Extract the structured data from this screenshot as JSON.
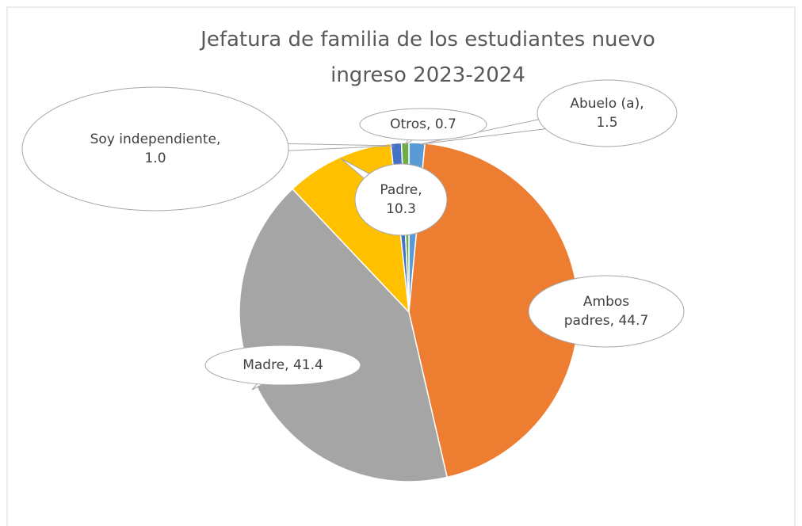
{
  "chart_data": {
    "type": "pie",
    "title": "Jefatura de familia de los estudiantes nuevo ingreso 2023-2024",
    "categories": [
      "Abuelo (a)",
      "Ambos padres",
      "Madre",
      "Padre",
      "Soy independiente",
      "Otros"
    ],
    "values": [
      1.5,
      44.7,
      41.4,
      10.3,
      1.0,
      0.7
    ],
    "value_labels": [
      "1.5",
      "44.7",
      "41.4",
      "10.3",
      "1.0",
      "0.7"
    ],
    "label_separator": ", ",
    "colors": [
      "#5b9bd5",
      "#ed7d31",
      "#a5a5a5",
      "#ffc000",
      "#4472c4",
      "#70ad47"
    ]
  }
}
